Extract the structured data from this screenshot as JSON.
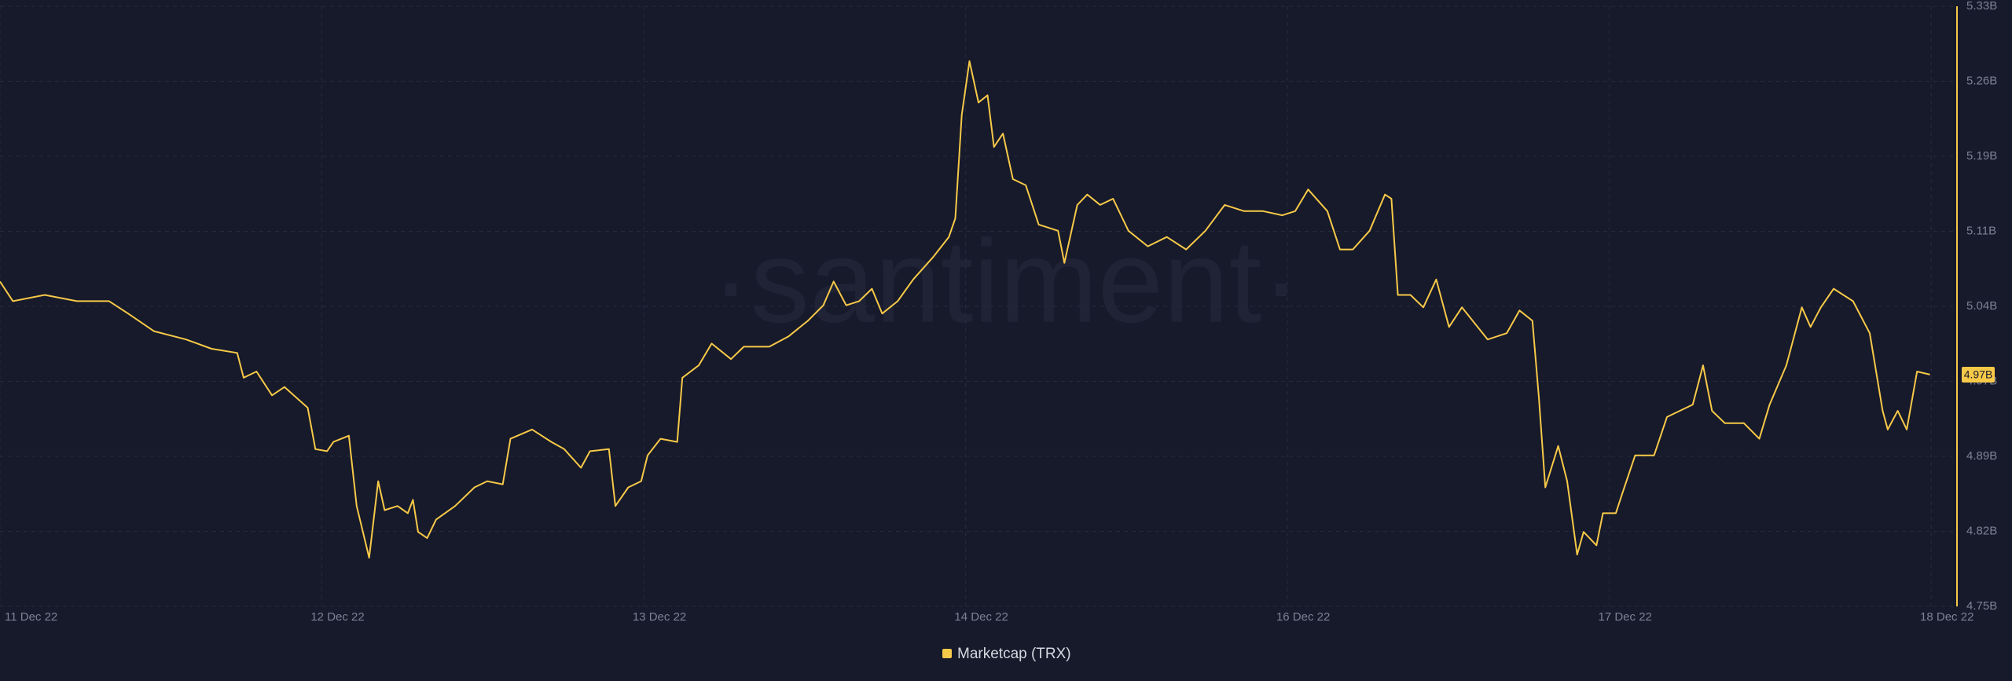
{
  "chart_data": {
    "type": "line",
    "watermark": "·santiment·",
    "current_label": "4.97B",
    "xticks": [
      {
        "value": 0,
        "label": "11 Dec 22"
      },
      {
        "value": 1,
        "label": "12 Dec 22"
      },
      {
        "value": 2,
        "label": "13 Dec 22"
      },
      {
        "value": 3,
        "label": "14 Dec 22"
      },
      {
        "value": 4,
        "label": "16 Dec 22"
      },
      {
        "value": 5,
        "label": "17 Dec 22"
      },
      {
        "value": 6,
        "label": "18 Dec 22"
      }
    ],
    "xlim": [
      0,
      6.08
    ],
    "ylim": [
      4.75,
      5.33
    ],
    "yticks": [
      {
        "value": 4.75,
        "label": "4.75B"
      },
      {
        "value": 4.8225,
        "label": "4.82B"
      },
      {
        "value": 4.895,
        "label": "4.89B"
      },
      {
        "value": 4.9675,
        "label": "4.97B"
      },
      {
        "value": 5.04,
        "label": "5.04B"
      },
      {
        "value": 5.1125,
        "label": "5.11B"
      },
      {
        "value": 5.185,
        "label": "5.19B"
      },
      {
        "value": 5.2575,
        "label": "5.26B"
      },
      {
        "value": 5.33,
        "label": "5.33B"
      }
    ],
    "grid": true,
    "x": [
      0,
      0.04,
      0.139,
      0.239,
      0.339,
      0.398,
      0.478,
      0.578,
      0.657,
      0.737,
      0.757,
      0.797,
      0.845,
      0.884,
      0.956,
      0.98,
      1.016,
      1.036,
      1.084,
      1.108,
      1.147,
      1.175,
      1.195,
      1.235,
      1.267,
      1.283,
      1.299,
      1.327,
      1.355,
      1.414,
      1.474,
      1.514,
      1.562,
      1.586,
      1.653,
      1.713,
      1.753,
      1.805,
      1.833,
      1.892,
      1.912,
      1.952,
      1.992,
      2.012,
      2.052,
      2.104,
      2.12,
      2.171,
      2.211,
      2.271,
      2.311,
      2.39,
      2.45,
      2.51,
      2.558,
      2.59,
      2.629,
      2.669,
      2.709,
      2.741,
      2.789,
      2.837,
      2.9,
      2.948,
      2.968,
      2.988,
      3.012,
      3.04,
      3.068,
      3.088,
      3.116,
      3.147,
      3.187,
      3.227,
      3.287,
      3.307,
      3.347,
      3.378,
      3.418,
      3.458,
      3.506,
      3.566,
      3.625,
      3.685,
      3.745,
      3.805,
      3.865,
      3.924,
      3.984,
      4.024,
      4.064,
      4.124,
      4.163,
      4.203,
      4.255,
      4.303,
      4.323,
      4.343,
      4.382,
      4.422,
      4.462,
      4.502,
      4.542,
      4.622,
      4.681,
      4.721,
      4.761,
      4.781,
      4.801,
      4.841,
      4.869,
      4.9,
      4.92,
      4.96,
      4.98,
      5.02,
      5.04,
      5.08,
      5.139,
      5.179,
      5.259,
      5.291,
      5.319,
      5.359,
      5.418,
      5.466,
      5.498,
      5.55,
      5.598,
      5.625,
      5.657,
      5.697,
      5.757,
      5.809,
      5.849,
      5.865,
      5.896,
      5.924,
      5.956,
      5.996
    ],
    "series": [
      {
        "name": "Marketcap (TRX)",
        "color": "#f7c948",
        "values": [
          5.064,
          5.045,
          5.051,
          5.045,
          5.045,
          5.033,
          5.016,
          5.008,
          4.999,
          4.995,
          4.971,
          4.977,
          4.954,
          4.962,
          4.942,
          4.902,
          4.9,
          4.909,
          4.915,
          4.847,
          4.797,
          4.871,
          4.843,
          4.847,
          4.84,
          4.853,
          4.822,
          4.816,
          4.834,
          4.847,
          4.865,
          4.871,
          4.868,
          4.912,
          4.921,
          4.909,
          4.902,
          4.884,
          4.9,
          4.902,
          4.847,
          4.865,
          4.871,
          4.896,
          4.912,
          4.909,
          4.971,
          4.983,
          5.004,
          4.989,
          5.001,
          5.001,
          5.011,
          5.026,
          5.041,
          5.064,
          5.041,
          5.045,
          5.057,
          5.033,
          5.045,
          5.066,
          5.088,
          5.107,
          5.125,
          5.225,
          5.277,
          5.237,
          5.244,
          5.194,
          5.207,
          5.163,
          5.157,
          5.119,
          5.113,
          5.082,
          5.138,
          5.148,
          5.138,
          5.144,
          5.113,
          5.098,
          5.107,
          5.095,
          5.113,
          5.138,
          5.132,
          5.132,
          5.128,
          5.132,
          5.153,
          5.132,
          5.095,
          5.095,
          5.113,
          5.148,
          5.144,
          5.051,
          5.051,
          5.039,
          5.066,
          5.02,
          5.039,
          5.008,
          5.014,
          5.036,
          5.026,
          4.952,
          4.865,
          4.905,
          4.871,
          4.8,
          4.822,
          4.809,
          4.84,
          4.84,
          4.859,
          4.896,
          4.896,
          4.933,
          4.945,
          4.983,
          4.939,
          4.927,
          4.927,
          4.912,
          4.945,
          4.983,
          5.039,
          5.02,
          5.039,
          5.057,
          5.045,
          5.014,
          4.939,
          4.921,
          4.939,
          4.921,
          4.977,
          4.974
        ]
      }
    ]
  }
}
